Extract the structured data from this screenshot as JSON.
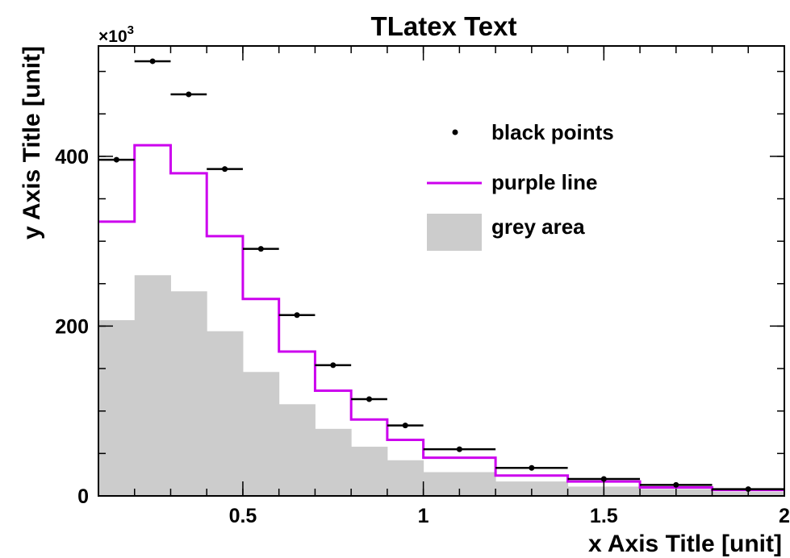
{
  "colors": {
    "points": "#000000",
    "line": "#cc00ee",
    "area": "#cccccc",
    "frame": "#000000"
  },
  "chart_data": {
    "type": "histogram",
    "title": "TLatex Text",
    "xlabel": "x Axis Title [unit]",
    "ylabel": "y Axis Title [unit]",
    "y_multiplier": "×10",
    "y_multiplier_exp": "3",
    "xlim": [
      0.1,
      2.0
    ],
    "ylim": [
      0,
      530
    ],
    "x_ticks": [
      {
        "value": 0.5,
        "label": "0.5"
      },
      {
        "value": 1.0,
        "label": "1"
      },
      {
        "value": 1.5,
        "label": "1.5"
      },
      {
        "value": 2.0,
        "label": "2"
      }
    ],
    "y_ticks": [
      {
        "value": 0,
        "label": "0"
      },
      {
        "value": 200,
        "label": "200"
      },
      {
        "value": 400,
        "label": "400"
      }
    ],
    "legend": {
      "position": "top-right",
      "entries": [
        {
          "label": "black points",
          "style": "marker"
        },
        {
          "label": "purple line",
          "style": "line"
        },
        {
          "label": "grey area",
          "style": "fill"
        }
      ]
    },
    "bin_edges": [
      0.1,
      0.2,
      0.3,
      0.4,
      0.5,
      0.6,
      0.7,
      0.8,
      0.9,
      1.0,
      1.2,
      1.4,
      1.6,
      1.8,
      2.0
    ],
    "series": [
      {
        "name": "black points",
        "style": "points",
        "values": [
          396,
          512,
          473,
          385,
          291,
          213,
          154,
          114,
          83,
          55,
          33,
          20,
          13,
          8
        ]
      },
      {
        "name": "purple line",
        "style": "step",
        "values": [
          323,
          413,
          380,
          306,
          232,
          170,
          124,
          90,
          66,
          45,
          24,
          17,
          10,
          7
        ]
      },
      {
        "name": "grey area",
        "style": "filled",
        "values": [
          207,
          260,
          241,
          194,
          146,
          108,
          79,
          58,
          42,
          28,
          17,
          11,
          8,
          5
        ]
      }
    ]
  }
}
